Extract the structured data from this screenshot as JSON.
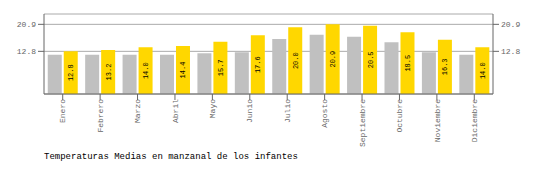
{
  "chart_data": {
    "type": "bar",
    "title": "Temperaturas Medias en manzanal de los infantes",
    "categories": [
      "Enero",
      "Febrero",
      "Marzo",
      "Abril",
      "Mayo",
      "Junio",
      "Julio",
      "Agosto",
      "Septiembre",
      "Octubre",
      "Noviembre",
      "Diciembre"
    ],
    "series": [
      {
        "color": "#C0C0C0",
        "values": [
          11.8,
          11.8,
          11.8,
          11.8,
          12.2,
          12.5,
          16.5,
          17.8,
          17.2,
          15.5,
          12.5,
          11.8
        ]
      },
      {
        "color": "#FFD700",
        "values": [
          12.8,
          13.2,
          14.0,
          14.4,
          15.7,
          17.6,
          20.0,
          20.9,
          20.5,
          18.5,
          16.3,
          14.0
        ],
        "value_labels": [
          "12.8",
          "13.2",
          "14.0",
          "14.4",
          "15.7",
          "17.6",
          "20.0",
          "20.9",
          "20.5",
          "18.5",
          "16.3",
          "14.0"
        ],
        "data_labels": true
      }
    ],
    "ylim": [
      0,
      24.0
    ],
    "yticks": [
      20.9,
      12.8
    ],
    "grid": true
  }
}
